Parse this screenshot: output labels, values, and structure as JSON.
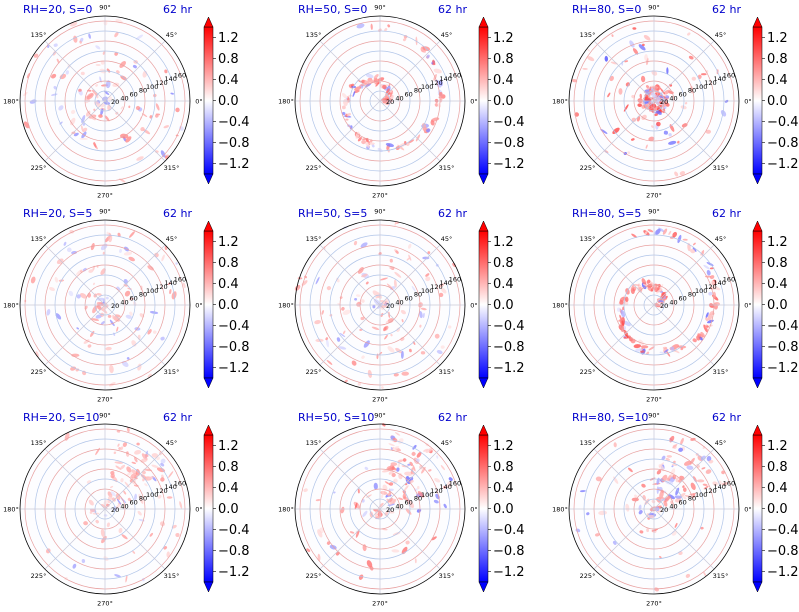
{
  "figure": {
    "colormap": "bwr",
    "colors": {
      "title": "#0000cc",
      "positive": "#ff0000",
      "negative": "#0000ff",
      "zero": "#ffffff",
      "gridline_red": "#e8a0a0",
      "gridline_blue": "#b0c4e8"
    }
  },
  "chart_data": [
    {
      "type": "heatmap",
      "projection": "polar",
      "title_left": "RH=20, S=0",
      "title_right": "62 hr",
      "angle_ticks": [
        "90°",
        "45°",
        "0°",
        "315°",
        "270°",
        "225°",
        "180°",
        "135°"
      ],
      "radial_ticks": [
        20,
        40,
        60,
        80,
        100,
        120,
        140,
        160
      ],
      "rlim": [
        0,
        170
      ],
      "grid": true,
      "colorbar": {
        "ticks": [
          1.2,
          0.8,
          0.4,
          0.0,
          -0.4,
          -0.8,
          -1.2
        ],
        "labels": [
          "1.2",
          "0.8",
          "0.4",
          "0.0",
          "−0.4",
          "−0.8",
          "−1.2"
        ],
        "vlim": [
          -1.4,
          1.4
        ],
        "extend": "both"
      },
      "intensity": 0.35,
      "pattern": "scattered"
    },
    {
      "type": "heatmap",
      "projection": "polar",
      "title_left": "RH=50, S=0",
      "title_right": "62 hr",
      "angle_ticks": [
        "90°",
        "45°",
        "0°",
        "315°",
        "270°",
        "225°",
        "180°",
        "135°"
      ],
      "radial_ticks": [
        20,
        40,
        60,
        80,
        100,
        120,
        140,
        160
      ],
      "rlim": [
        0,
        170
      ],
      "grid": true,
      "colorbar": {
        "ticks": [
          1.2,
          0.8,
          0.4,
          0.0,
          -0.4,
          -0.8,
          -1.2
        ],
        "labels": [
          "1.2",
          "0.8",
          "0.4",
          "0.0",
          "−0.4",
          "−0.8",
          "−1.2"
        ],
        "vlim": [
          -1.4,
          1.4
        ],
        "extend": "both"
      },
      "intensity": 0.45,
      "pattern": "spiral"
    },
    {
      "type": "heatmap",
      "projection": "polar",
      "title_left": "RH=80, S=0",
      "title_right": "62 hr",
      "angle_ticks": [
        "90°",
        "45°",
        "0°",
        "315°",
        "270°",
        "225°",
        "180°",
        "135°"
      ],
      "radial_ticks": [
        20,
        40,
        60,
        80,
        100,
        120,
        140,
        160
      ],
      "rlim": [
        0,
        170
      ],
      "grid": true,
      "colorbar": {
        "ticks": [
          1.2,
          0.8,
          0.4,
          0.0,
          -0.4,
          -0.8,
          -1.2
        ],
        "labels": [
          "1.2",
          "0.8",
          "0.4",
          "0.0",
          "−0.4",
          "−0.8",
          "−1.2"
        ],
        "vlim": [
          -1.4,
          1.4
        ],
        "extend": "both"
      },
      "intensity": 0.6,
      "pattern": "core"
    },
    {
      "type": "heatmap",
      "projection": "polar",
      "title_left": "RH=20, S=5",
      "title_right": "62 hr",
      "angle_ticks": [
        "90°",
        "45°",
        "0°",
        "315°",
        "270°",
        "225°",
        "180°",
        "135°"
      ],
      "radial_ticks": [
        20,
        40,
        60,
        80,
        100,
        120,
        140,
        160
      ],
      "rlim": [
        0,
        170
      ],
      "grid": true,
      "colorbar": {
        "ticks": [
          1.2,
          0.8,
          0.4,
          0.0,
          -0.4,
          -0.8,
          -1.2
        ],
        "labels": [
          "1.2",
          "0.8",
          "0.4",
          "0.0",
          "−0.4",
          "−0.8",
          "−1.2"
        ],
        "vlim": [
          -1.4,
          1.4
        ],
        "extend": "both"
      },
      "intensity": 0.3,
      "pattern": "scattered"
    },
    {
      "type": "heatmap",
      "projection": "polar",
      "title_left": "RH=50, S=5",
      "title_right": "62 hr",
      "angle_ticks": [
        "90°",
        "45°",
        "0°",
        "315°",
        "270°",
        "225°",
        "180°",
        "135°"
      ],
      "radial_ticks": [
        20,
        40,
        60,
        80,
        100,
        120,
        140,
        160
      ],
      "rlim": [
        0,
        170
      ],
      "grid": true,
      "colorbar": {
        "ticks": [
          1.2,
          0.8,
          0.4,
          0.0,
          -0.4,
          -0.8,
          -1.2
        ],
        "labels": [
          "1.2",
          "0.8",
          "0.4",
          "0.0",
          "−0.4",
          "−0.8",
          "−1.2"
        ],
        "vlim": [
          -1.4,
          1.4
        ],
        "extend": "both"
      },
      "intensity": 0.35,
      "pattern": "scattered"
    },
    {
      "type": "heatmap",
      "projection": "polar",
      "title_left": "RH=80, S=5",
      "title_right": "62 hr",
      "angle_ticks": [
        "90°",
        "45°",
        "0°",
        "315°",
        "270°",
        "225°",
        "180°",
        "135°"
      ],
      "radial_ticks": [
        20,
        40,
        60,
        80,
        100,
        120,
        140,
        160
      ],
      "rlim": [
        0,
        170
      ],
      "grid": true,
      "colorbar": {
        "ticks": [
          1.2,
          0.8,
          0.4,
          0.0,
          -0.4,
          -0.8,
          -1.2
        ],
        "labels": [
          "1.2",
          "0.8",
          "0.4",
          "0.0",
          "−0.4",
          "−0.8",
          "−1.2"
        ],
        "vlim": [
          -1.4,
          1.4
        ],
        "extend": "both"
      },
      "intensity": 0.55,
      "pattern": "spiral"
    },
    {
      "type": "heatmap",
      "projection": "polar",
      "title_left": "RH=20, S=10",
      "title_right": "62 hr",
      "angle_ticks": [
        "90°",
        "45°",
        "0°",
        "315°",
        "270°",
        "225°",
        "180°",
        "135°"
      ],
      "radial_ticks": [
        20,
        40,
        60,
        80,
        100,
        120,
        140,
        160
      ],
      "rlim": [
        0,
        170
      ],
      "grid": true,
      "colorbar": {
        "ticks": [
          1.2,
          0.8,
          0.4,
          0.0,
          -0.4,
          -0.8,
          -1.2
        ],
        "labels": [
          "1.2",
          "0.8",
          "0.4",
          "0.0",
          "−0.4",
          "−0.8",
          "−1.2"
        ],
        "vlim": [
          -1.4,
          1.4
        ],
        "extend": "both"
      },
      "intensity": 0.3,
      "pattern": "northeast"
    },
    {
      "type": "heatmap",
      "projection": "polar",
      "title_left": "RH=50, S=10",
      "title_right": "62 hr",
      "angle_ticks": [
        "90°",
        "45°",
        "0°",
        "315°",
        "270°",
        "225°",
        "180°",
        "135°"
      ],
      "radial_ticks": [
        20,
        40,
        60,
        80,
        100,
        120,
        140,
        160
      ],
      "rlim": [
        0,
        170
      ],
      "grid": true,
      "colorbar": {
        "ticks": [
          1.2,
          0.8,
          0.4,
          0.0,
          -0.4,
          -0.8,
          -1.2
        ],
        "labels": [
          "1.2",
          "0.8",
          "0.4",
          "0.0",
          "−0.4",
          "−0.8",
          "−1.2"
        ],
        "vlim": [
          -1.4,
          1.4
        ],
        "extend": "both"
      },
      "intensity": 0.45,
      "pattern": "northeast"
    },
    {
      "type": "heatmap",
      "projection": "polar",
      "title_left": "RH=80, S=10",
      "title_right": "62 hr",
      "angle_ticks": [
        "90°",
        "45°",
        "0°",
        "315°",
        "270°",
        "225°",
        "180°",
        "135°"
      ],
      "radial_ticks": [
        20,
        40,
        60,
        80,
        100,
        120,
        140,
        160
      ],
      "rlim": [
        0,
        170
      ],
      "grid": true,
      "colorbar": {
        "ticks": [
          1.2,
          0.8,
          0.4,
          0.0,
          -0.4,
          -0.8,
          -1.2
        ],
        "labels": [
          "1.2",
          "0.8",
          "0.4",
          "0.0",
          "−0.4",
          "−0.8",
          "−1.2"
        ],
        "vlim": [
          -1.4,
          1.4
        ],
        "extend": "both"
      },
      "intensity": 0.4,
      "pattern": "northeast"
    }
  ]
}
